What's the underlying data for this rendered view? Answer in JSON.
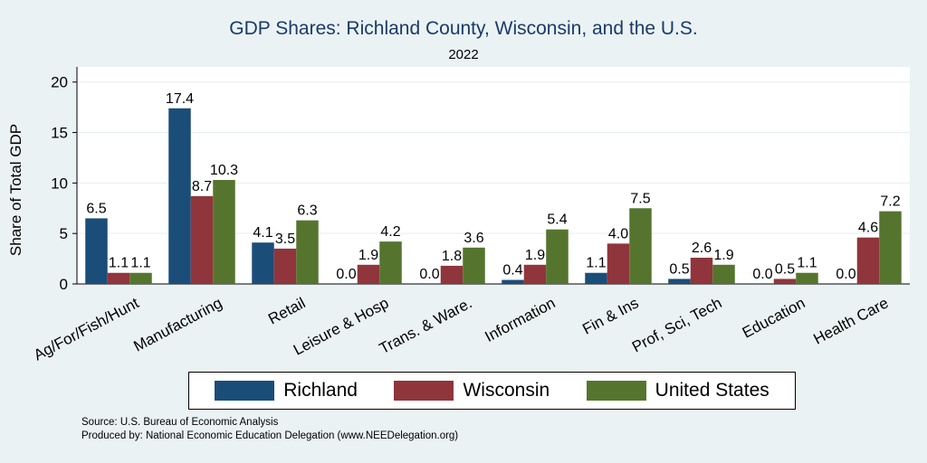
{
  "chart_data": {
    "type": "bar",
    "title": "GDP Shares: Richland County, Wisconsin, and the U.S.",
    "subtitle": "2022",
    "ylabel": "Share of Total GDP",
    "xlabel": "",
    "ylim": [
      0,
      21.5
    ],
    "yticks": [
      0,
      5,
      10,
      15,
      20
    ],
    "grid": true,
    "legend_placement": "bottom",
    "categories": [
      "Ag/For/Fish/Hunt",
      "Manufacturing",
      "Retail",
      "Leisure & Hosp",
      "Trans. & Ware.",
      "Information",
      "Fin & Ins",
      "Prof, Sci, Tech",
      "Education",
      "Health Care"
    ],
    "series": [
      {
        "name": "Richland",
        "color": "#1b4d79",
        "values": [
          6.5,
          17.4,
          4.1,
          0.0,
          0.0,
          0.4,
          1.1,
          0.5,
          0.0,
          0.0
        ],
        "labels": [
          "6.5",
          "17.4",
          "4.1",
          "0.0",
          "0.0",
          "0.4",
          "1.1",
          "0.5",
          "0.0",
          "0.0"
        ]
      },
      {
        "name": "Wisconsin",
        "color": "#90353c",
        "values": [
          1.1,
          8.7,
          3.5,
          1.9,
          1.8,
          1.9,
          4.0,
          2.6,
          0.5,
          4.6
        ],
        "labels": [
          "1.1",
          "8.7",
          "3.5",
          "1.9",
          "1.8",
          "1.9",
          "4.0",
          "2.6",
          "0.5",
          "4.6"
        ]
      },
      {
        "name": "United States",
        "color": "#55752f",
        "values": [
          1.1,
          10.3,
          6.3,
          4.2,
          3.6,
          5.4,
          7.5,
          1.9,
          1.1,
          7.2
        ],
        "labels": [
          "1.1",
          "10.3",
          "6.3",
          "4.2",
          "3.6",
          "5.4",
          "7.5",
          "1.9",
          "1.1",
          "7.2"
        ]
      }
    ]
  },
  "source": {
    "line1": "Source: U.S. Bureau of Economic Analysis",
    "line2": "Produced by: National Economic Education Delegation (www.NEEDelegation.org)"
  }
}
